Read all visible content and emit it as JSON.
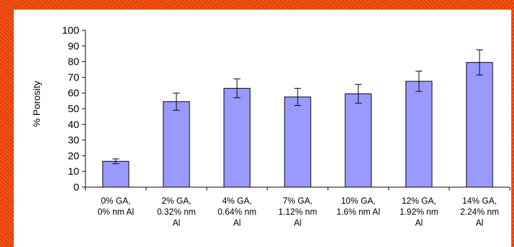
{
  "chart_data": {
    "type": "bar",
    "ylabel": "% Porosity",
    "xlabel": "",
    "ylim": [
      0,
      100
    ],
    "yticks": [
      0,
      10,
      20,
      30,
      40,
      50,
      60,
      70,
      80,
      90,
      100
    ],
    "grid": false,
    "categories": [
      [
        "0% GA,",
        "0% nm Al"
      ],
      [
        "2% GA,",
        "0.32% nm",
        "Al"
      ],
      [
        "4% GA,",
        "0.64% nm",
        "Al"
      ],
      [
        "7% GA,",
        "1.12% nm",
        "Al"
      ],
      [
        "10% GA,",
        "1.6% nm Al"
      ],
      [
        "12% GA,",
        "1.92% nm",
        "Al"
      ],
      [
        "14% GA,",
        "2.24% nm",
        "Al"
      ]
    ],
    "values": [
      16.5,
      54.5,
      63,
      57.5,
      59.5,
      67.5,
      79.5
    ],
    "errors": [
      1.5,
      5.5,
      6,
      5.5,
      6,
      6.5,
      8
    ],
    "colors": {
      "bar_fill": "#9999ff",
      "bar_stroke": "#000000",
      "background": "#ffffff"
    }
  }
}
